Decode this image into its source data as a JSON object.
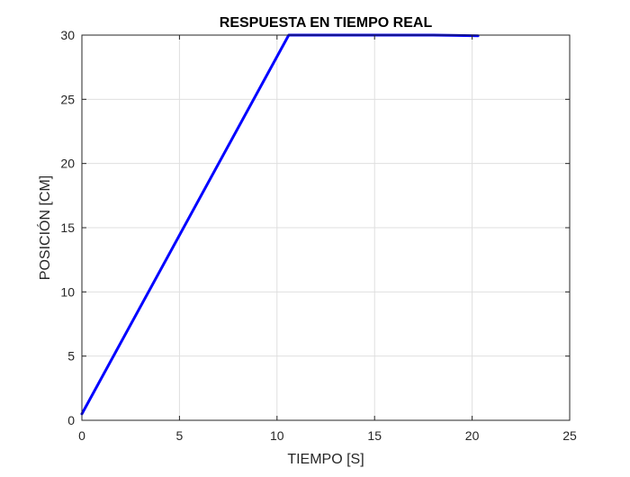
{
  "chart_data": {
    "type": "line",
    "title": "RESPUESTA EN TIEMPO REAL",
    "xlabel": "TIEMPO [S]",
    "ylabel": "POSICIÓN [CM]",
    "xlim": [
      0,
      25
    ],
    "ylim": [
      0,
      30
    ],
    "xticks": [
      0,
      5,
      10,
      15,
      20,
      25
    ],
    "yticks": [
      0,
      5,
      10,
      15,
      20,
      25,
      30
    ],
    "grid": true,
    "series": [
      {
        "color": "#0000ff",
        "x": [
          0,
          10.6,
          12,
          14,
          16,
          18,
          20.3
        ],
        "y": [
          0.5,
          30,
          30,
          30,
          30,
          30,
          29.95
        ]
      }
    ]
  }
}
